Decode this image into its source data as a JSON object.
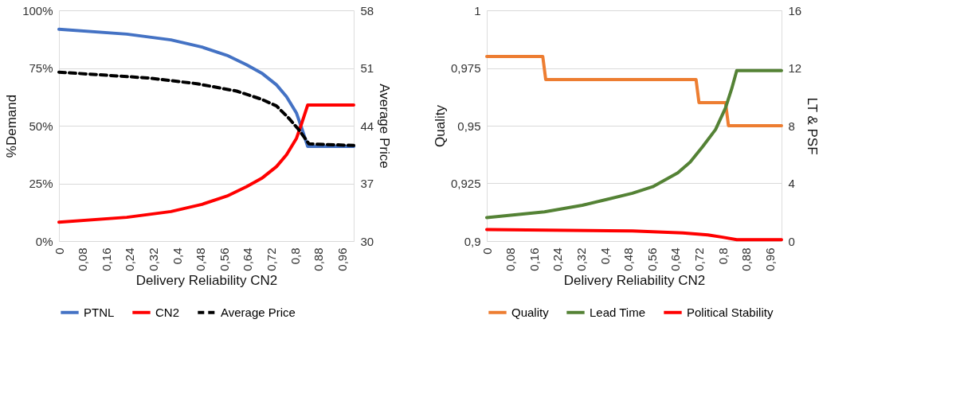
{
  "chart_data": [
    {
      "type": "line",
      "xlabel": "Delivery Reliability CN2",
      "ylabel": "%Demand",
      "y2label": "Average Price",
      "xlim": [
        0,
        1
      ],
      "xticks": [
        0,
        {
          "value": 0.08,
          "label": "0,08"
        },
        {
          "value": 0.16,
          "label": "0,16"
        },
        {
          "value": 0.24,
          "label": "0,24"
        },
        {
          "value": 0.32,
          "label": "0,32"
        },
        {
          "value": 0.4,
          "label": "0,4"
        },
        {
          "value": 0.48,
          "label": "0,48"
        },
        {
          "value": 0.56,
          "label": "0,56"
        },
        {
          "value": 0.64,
          "label": "0,64"
        },
        {
          "value": 0.72,
          "label": "0,72"
        },
        {
          "value": 0.8,
          "label": "0,8"
        },
        {
          "value": 0.88,
          "label": "0,88"
        },
        {
          "value": 0.96,
          "label": "0,96"
        }
      ],
      "ylim": [
        0,
        100
      ],
      "yticks": [
        {
          "value": 0,
          "label": "0%"
        },
        {
          "value": 25,
          "label": "25%"
        },
        {
          "value": 50,
          "label": "50%"
        },
        {
          "value": 75,
          "label": "75%"
        },
        {
          "value": 100,
          "label": "100%"
        }
      ],
      "y2lim": [
        30,
        58
      ],
      "y2ticks": [
        30,
        37,
        44,
        51,
        58
      ],
      "grid": "y",
      "legend": "bottom",
      "line_style": "solid",
      "series": [
        {
          "name": "PTNL",
          "color": "#4472c4",
          "x": [
            0,
            0.23,
            0.38,
            0.485,
            0.57,
            0.637,
            0.688,
            0.738,
            0.772,
            0.806,
            0.823,
            0.844,
            1
          ],
          "values": [
            91.8,
            89.7,
            87.2,
            84.1,
            80.5,
            76.4,
            72.8,
            67.7,
            62.6,
            55.4,
            49.2,
            41,
            41
          ]
        },
        {
          "name": "CN2",
          "color": "#ff0000",
          "x": [
            0,
            0.23,
            0.38,
            0.485,
            0.57,
            0.637,
            0.688,
            0.738,
            0.772,
            0.806,
            0.823,
            0.844,
            1
          ],
          "values": [
            8.2,
            10.3,
            12.8,
            15.9,
            19.5,
            23.6,
            27.2,
            32.3,
            37.4,
            44.6,
            50.8,
            59,
            59
          ]
        },
        {
          "name": "Average Price",
          "color": "#000000",
          "axis": "y2",
          "line_style": "dashed",
          "x": [
            0,
            0.3,
            0.468,
            0.603,
            0.688,
            0.738,
            0.78,
            0.814,
            0.848,
            1
          ],
          "values": [
            50.5,
            49.8,
            49.1,
            48.2,
            47.2,
            46.4,
            44.9,
            43.5,
            41.8,
            41.6
          ]
        }
      ]
    },
    {
      "type": "line",
      "xlabel": "Delivery Reliability CN2",
      "ylabel": "Quality",
      "y2label": "LT & PSF",
      "xlim": [
        0,
        1
      ],
      "xticks": [
        0,
        {
          "value": 0.08,
          "label": "0,08"
        },
        {
          "value": 0.16,
          "label": "0,16"
        },
        {
          "value": 0.24,
          "label": "0,24"
        },
        {
          "value": 0.32,
          "label": "0,32"
        },
        {
          "value": 0.4,
          "label": "0,4"
        },
        {
          "value": 0.48,
          "label": "0,48"
        },
        {
          "value": 0.56,
          "label": "0,56"
        },
        {
          "value": 0.64,
          "label": "0,64"
        },
        {
          "value": 0.72,
          "label": "0,72"
        },
        {
          "value": 0.8,
          "label": "0,8"
        },
        {
          "value": 0.88,
          "label": "0,88"
        },
        {
          "value": 0.96,
          "label": "0,96"
        }
      ],
      "ylim": [
        0.9,
        1
      ],
      "yticks": [
        {
          "value": 0.9,
          "label": "0,9"
        },
        {
          "value": 0.925,
          "label": "0,925"
        },
        {
          "value": 0.95,
          "label": "0,95"
        },
        {
          "value": 0.975,
          "label": "0,975"
        },
        1
      ],
      "y2lim": [
        0,
        16
      ],
      "y2ticks": [
        0,
        4,
        8,
        12,
        16
      ],
      "grid": "y",
      "legend": "bottom",
      "line_style": "solid",
      "series": [
        {
          "name": "Quality",
          "color": "#ed7d31",
          "x": [
            0,
            0.19,
            0.2,
            0.71,
            0.72,
            0.81,
            0.82,
            1
          ],
          "values": [
            0.98,
            0.98,
            0.97,
            0.97,
            0.96,
            0.96,
            0.95,
            0.95
          ]
        },
        {
          "name": "Lead Time",
          "color": "#548235",
          "axis": "y2",
          "x": [
            0,
            0.196,
            0.324,
            0.409,
            0.494,
            0.563,
            0.648,
            0.69,
            0.733,
            0.776,
            0.81,
            0.831,
            0.848,
            1
          ],
          "values": [
            1.63,
            2.03,
            2.48,
            2.9,
            3.32,
            3.77,
            4.73,
            5.48,
            6.57,
            7.73,
            9.23,
            10.57,
            11.82,
            11.82
          ]
        },
        {
          "name": "Political Stability",
          "color": "#ff0000",
          "axis": "y2",
          "x": [
            0,
            0.494,
            0.665,
            0.75,
            0.8,
            0.848,
            1
          ],
          "values": [
            0.8,
            0.7,
            0.57,
            0.43,
            0.27,
            0.1,
            0.1
          ]
        }
      ]
    }
  ]
}
